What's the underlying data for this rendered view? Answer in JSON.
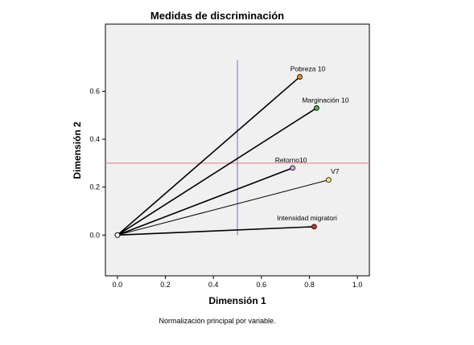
{
  "chart_data": {
    "type": "scatter",
    "title": "Medidas de discriminación",
    "xlabel": "Dimensión 1",
    "ylabel": "Dimensión 2",
    "footnote": "Normalización principal por variable.",
    "xlim": [
      -0.05,
      1.05
    ],
    "ylim": [
      -0.17,
      0.88
    ],
    "xticks": [
      "0.0",
      "0.2",
      "0.4",
      "0.6",
      "0.8",
      "1.0"
    ],
    "yticks": [
      "0.0",
      "0.2",
      "0.4",
      "0.6"
    ],
    "origin": {
      "x": 0.0,
      "y": 0.0
    },
    "reference_lines": {
      "vertical_x": 0.5,
      "horizontal_y": 0.3
    },
    "reference_line_colors": {
      "vertical": "#9999dd",
      "horizontal": "#ee7777"
    },
    "plot_background": "#f0f0f0",
    "series": [
      {
        "name": "Pobreza 10",
        "x": 0.76,
        "y": 0.66,
        "color": "#f08a30"
      },
      {
        "name": "Marginación 10",
        "x": 0.83,
        "y": 0.53,
        "color": "#44bb44"
      },
      {
        "name": "Retorno10",
        "x": 0.73,
        "y": 0.28,
        "color": "#d8a0e8"
      },
      {
        "name": "V7",
        "x": 0.88,
        "y": 0.23,
        "color": "#f2f060"
      },
      {
        "name": "Intensidad migratori",
        "x": 0.82,
        "y": 0.035,
        "color": "#d03030"
      }
    ]
  }
}
